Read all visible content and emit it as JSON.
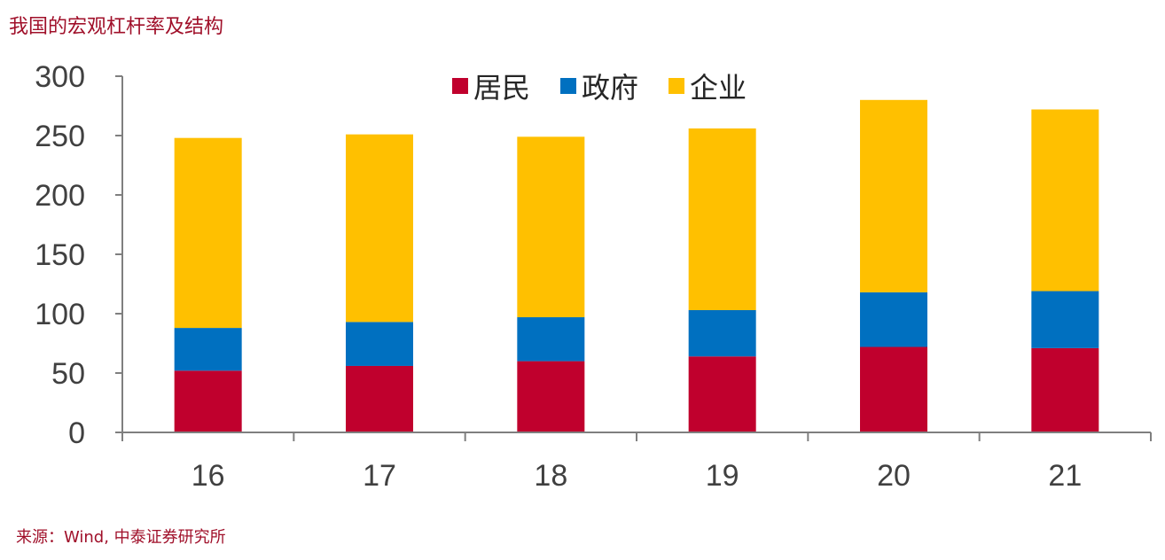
{
  "title": "我国的宏观杠杆率及结构",
  "source": "来源：Wind, 中泰证券研究所",
  "chart_data": {
    "type": "bar",
    "stacked": true,
    "categories": [
      "16",
      "17",
      "18",
      "19",
      "20",
      "21"
    ],
    "series": [
      {
        "name": "居民",
        "color": "#c0002d",
        "values": [
          52,
          56,
          60,
          64,
          72,
          71
        ]
      },
      {
        "name": "政府",
        "color": "#0070c0",
        "values": [
          36,
          37,
          37,
          39,
          46,
          48
        ]
      },
      {
        "name": "企业",
        "color": "#ffc000",
        "values": [
          160,
          158,
          152,
          153,
          162,
          153
        ]
      }
    ],
    "ylim": [
      0,
      300
    ],
    "yticks": [
      0,
      50,
      100,
      150,
      200,
      250,
      300
    ],
    "grid": false,
    "legend": "top-center"
  }
}
